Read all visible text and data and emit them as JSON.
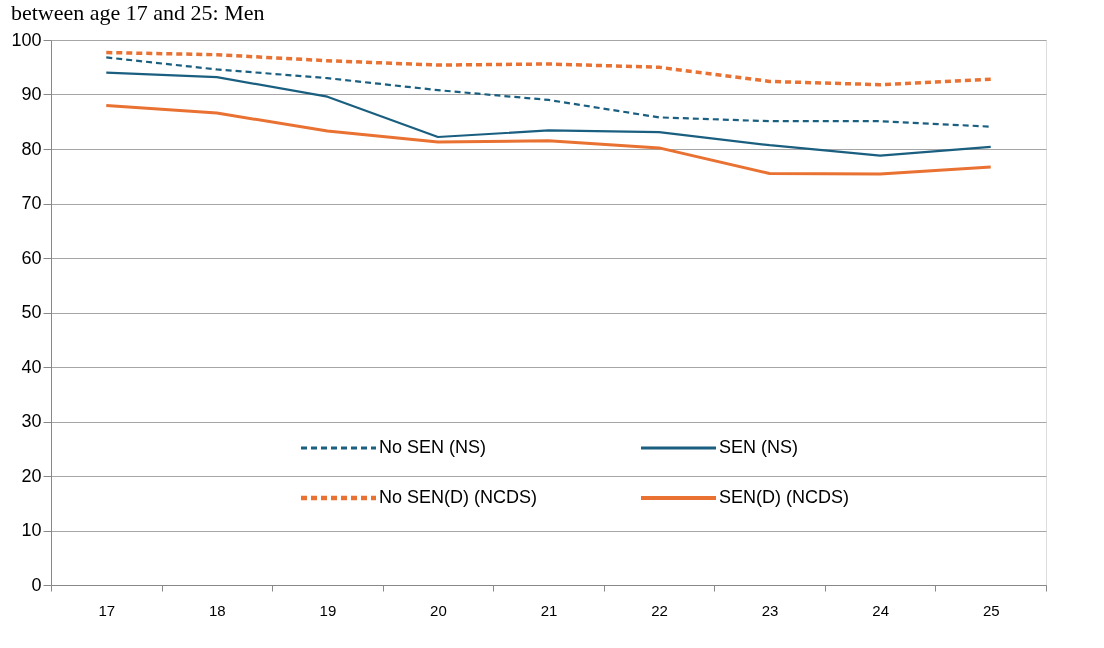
{
  "chart_data": {
    "type": "line",
    "title": "between age 17 and 25: Men",
    "categories": [
      "17",
      "18",
      "19",
      "20",
      "21",
      "22",
      "23",
      "24",
      "25"
    ],
    "series": [
      {
        "name": "No SEN (NS)",
        "color": "#1a5f80",
        "line_style": "dashed",
        "values": [
          96.8,
          94.6,
          93.0,
          90.8,
          89.0,
          85.8,
          85.1,
          85.1,
          84.1
        ]
      },
      {
        "name": "SEN (NS)",
        "color": "#1a5f80",
        "line_style": "solid",
        "values": [
          94.0,
          93.2,
          89.6,
          82.2,
          83.4,
          83.1,
          80.7,
          78.8,
          80.4
        ]
      },
      {
        "name": "No SEN(D) (NCDS)",
        "color": "#e97132",
        "line_style": "dashed",
        "values": [
          97.7,
          97.3,
          96.2,
          95.4,
          95.6,
          95.0,
          92.4,
          91.8,
          92.8
        ]
      },
      {
        "name": "SEN(D) (NCDS)",
        "color": "#e97132",
        "line_style": "solid",
        "values": [
          88.0,
          86.6,
          83.3,
          81.3,
          81.5,
          80.2,
          75.5,
          75.4,
          76.7
        ]
      }
    ],
    "ylim": [
      0,
      100
    ],
    "yticks": [
      0,
      10,
      20,
      30,
      40,
      50,
      60,
      70,
      80,
      90,
      100
    ],
    "grid": "y",
    "legend": "bottom",
    "marker": "none"
  }
}
